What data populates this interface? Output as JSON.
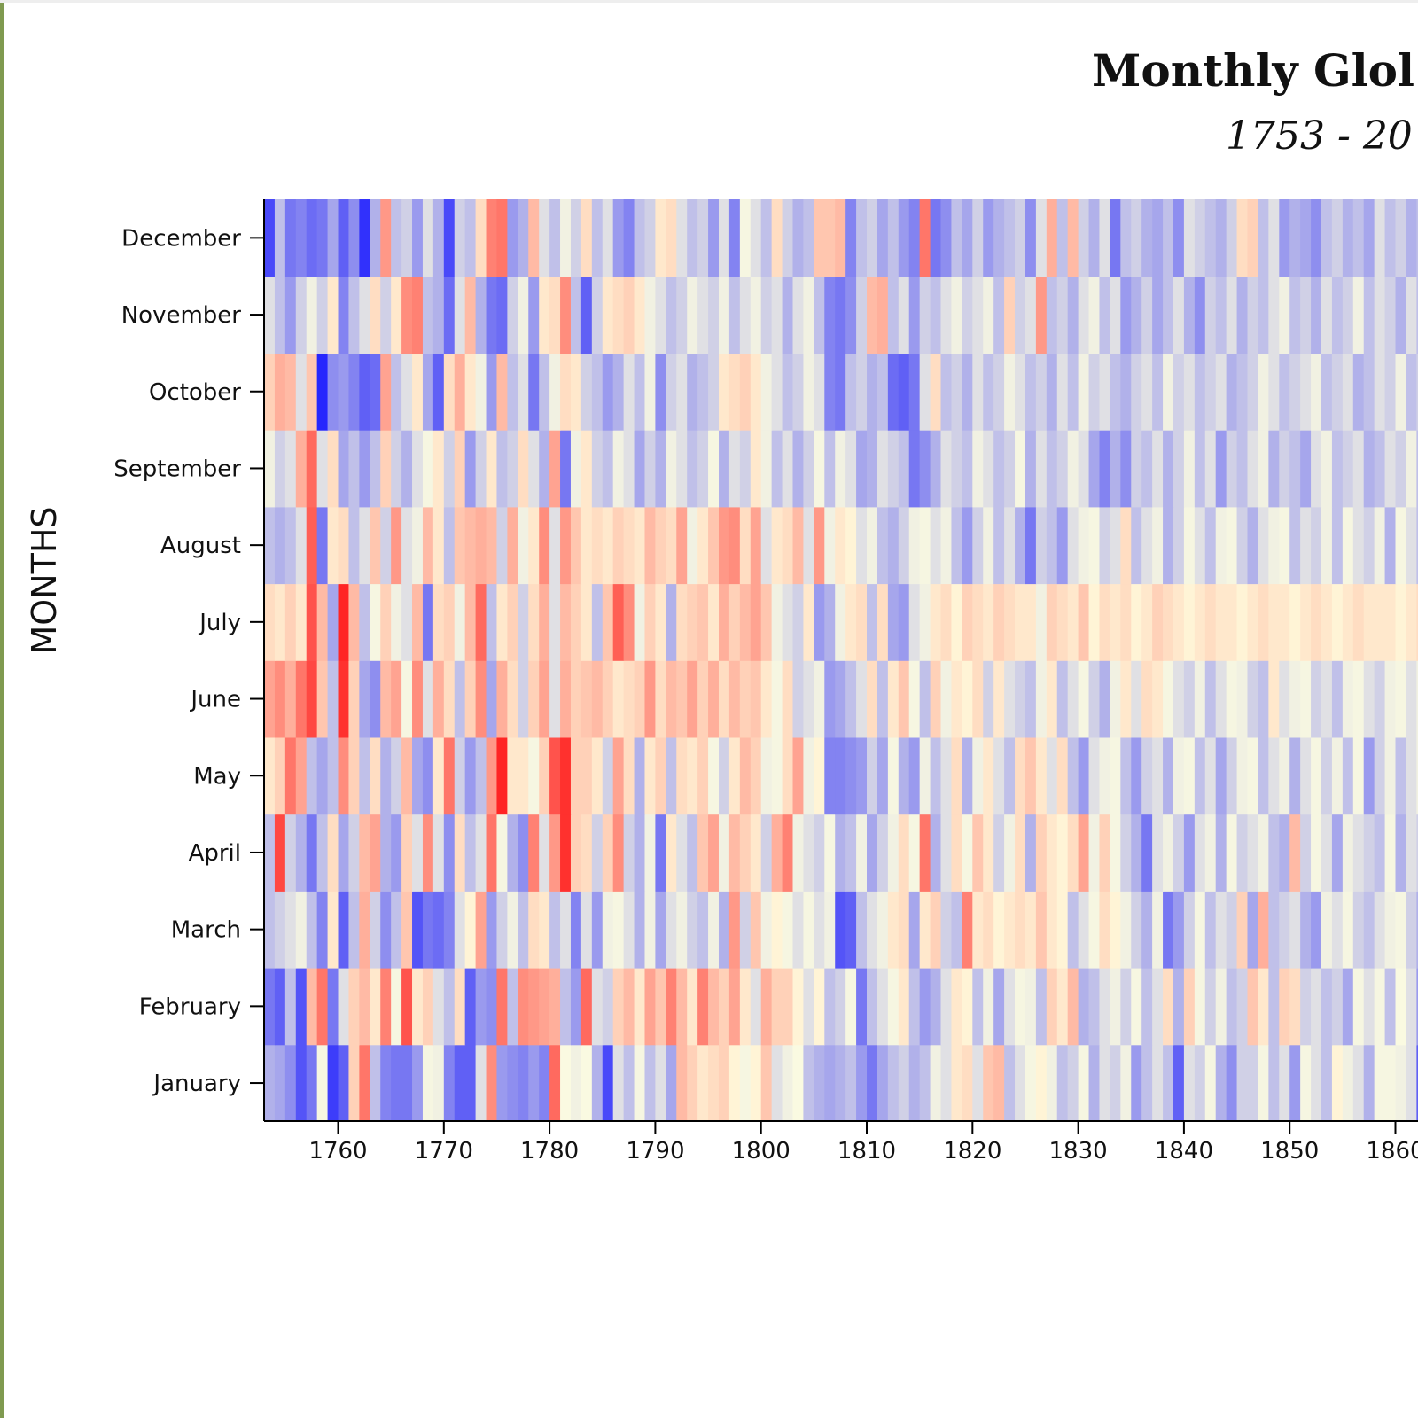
{
  "chart_data": {
    "type": "heatmap",
    "title": "Monthly Glol",
    "subtitle": "1753 - 20",
    "ylabel": "MONTHS",
    "xlabel": "",
    "x_range": [
      1753,
      1862
    ],
    "y_categories": [
      "January",
      "February",
      "March",
      "April",
      "May",
      "June",
      "July",
      "August",
      "September",
      "October",
      "November",
      "December"
    ],
    "x_ticks": [
      1760,
      1770,
      1780,
      1790,
      1800,
      1810,
      1820,
      1830,
      1840,
      1850,
      1860
    ],
    "color_scale": {
      "cold": "#1a1aff",
      "neutral": "#ffffe0",
      "warm": "#ff1a1a"
    },
    "value_domain": [
      -1,
      1
    ],
    "cell_values": [
      [
        -0.35,
        -0.4,
        -0.5,
        -0.75,
        -0.6,
        -0.1,
        -0.85,
        -0.7,
        0.2,
        0.6,
        -0.3,
        -0.55,
        -0.6,
        -0.6,
        -0.45,
        -0.1,
        -0.15,
        -0.55,
        -0.7,
        -0.7,
        -0.2,
        0.5,
        -0.45,
        -0.5,
        -0.55,
        -0.45,
        -0.55,
        0.65,
        -0.05,
        -0.15,
        -0.05,
        -0.35,
        -0.8,
        -0.2,
        -0.3,
        -0.1,
        -0.3,
        -0.2,
        -0.4,
        0.3,
        0.2,
        0.1,
        0.15,
        0.2,
        0.05,
        -0.1,
        0.05,
        0.25,
        -0.2,
        -0.15,
        -0.05,
        -0.3,
        -0.35,
        -0.4,
        -0.35,
        -0.3,
        -0.45,
        -0.6,
        -0.4,
        -0.3,
        -0.25,
        -0.35,
        -0.3,
        -0.15,
        -0.2,
        0.1,
        0.15,
        -0.2,
        0.25,
        0.3,
        -0.3,
        -0.2,
        -0.1,
        0.05,
        -0.15,
        -0.3,
        -0.25,
        -0.1,
        -0.35,
        -0.2,
        -0.25,
        -0.15,
        -0.45,
        -0.3,
        -0.2,
        -0.3,
        -0.7,
        -0.2,
        -0.25,
        -0.1,
        -0.35,
        -0.5,
        -0.25,
        -0.25,
        -0.1,
        -0.3,
        -0.2,
        -0.45,
        -0.1,
        -0.2,
        -0.3,
        0.05,
        -0.15,
        -0.2,
        -0.35,
        -0.1,
        -0.1,
        -0.15,
        -0.2,
        -0.7
      ],
      [
        -0.6,
        -0.7,
        -0.3,
        -0.75,
        0.3,
        0.6,
        -0.6,
        -0.2,
        0.2,
        0.3,
        0.1,
        0.55,
        -0.1,
        0.75,
        0.1,
        0.2,
        -0.2,
        -0.3,
        0.15,
        -0.7,
        -0.45,
        -0.5,
        0.6,
        -0.3,
        0.5,
        0.45,
        0.4,
        0.35,
        -0.3,
        -0.45,
        0.65,
        -0.2,
        -0.25,
        0.2,
        0.3,
        0.1,
        0.4,
        0.25,
        0.55,
        0.3,
        0.1,
        0.55,
        0.3,
        0.2,
        0.4,
        0.1,
        -0.2,
        0.35,
        0.2,
        0.2,
        0.05,
        -0.2,
        0.05,
        -0.3,
        -0.25,
        -0.1,
        -0.6,
        -0.3,
        -0.2,
        -0.1,
        0.1,
        -0.3,
        -0.45,
        -0.35,
        -0.2,
        0.1,
        0.05,
        -0.3,
        -0.15,
        -0.4,
        -0.2,
        -0.1,
        -0.15,
        -0.3,
        0.2,
        0.1,
        0.3,
        -0.35,
        -0.3,
        -0.2,
        -0.15,
        -0.25,
        -0.1,
        -0.3,
        -0.2,
        0.15,
        -0.35,
        0.2,
        -0.1,
        -0.25,
        -0.15,
        -0.3,
        -0.25,
        0.25,
        0.1,
        -0.3,
        0.2,
        0.15,
        -0.25,
        -0.2,
        -0.3,
        -0.25,
        -0.4,
        -0.1,
        -0.2,
        -0.1,
        -0.3,
        -0.05,
        -0.2,
        -0.45
      ],
      [
        -0.3,
        -0.25,
        -0.2,
        -0.15,
        -0.3,
        -0.55,
        0.1,
        -0.7,
        -0.3,
        0.35,
        -0.25,
        -0.5,
        -0.3,
        0.25,
        -0.75,
        -0.6,
        -0.65,
        -0.55,
        -0.2,
        0.05,
        0.4,
        -0.45,
        -0.25,
        -0.15,
        -0.3,
        0.15,
        0.1,
        -0.3,
        -0.2,
        -0.55,
        -0.2,
        -0.45,
        -0.15,
        -0.1,
        -0.2,
        -0.35,
        -0.15,
        -0.4,
        -0.2,
        -0.15,
        -0.25,
        -0.3,
        -0.15,
        -0.35,
        0.45,
        -0.25,
        0.25,
        -0.15,
        0.05,
        -0.1,
        -0.2,
        -0.1,
        -0.2,
        -0.15,
        -0.75,
        -0.7,
        -0.3,
        -0.2,
        -0.15,
        0.1,
        0.15,
        -0.4,
        0.1,
        0.2,
        -0.25,
        -0.3,
        0.55,
        0.1,
        0.15,
        0.05,
        0.1,
        0.15,
        0.1,
        0.25,
        0.1,
        0.05,
        -0.3,
        -0.2,
        -0.1,
        0.15,
        0.05,
        -0.15,
        -0.25,
        -0.35,
        -0.15,
        -0.6,
        -0.45,
        -0.25,
        -0.1,
        -0.3,
        -0.2,
        -0.25,
        0.2,
        -0.4,
        0.35,
        -0.3,
        -0.25,
        -0.2,
        -0.35,
        -0.45,
        -0.15,
        -0.2,
        -0.1,
        -0.25,
        -0.3,
        -0.2,
        -0.15,
        -0.1,
        -0.25,
        -0.35
      ],
      [
        -0.3,
        0.8,
        -0.25,
        -0.35,
        -0.6,
        -0.3,
        0.15,
        -0.4,
        -0.25,
        0.3,
        0.4,
        -0.35,
        -0.45,
        0.2,
        -0.2,
        0.5,
        -0.2,
        -0.5,
        0.15,
        -0.3,
        -0.2,
        0.6,
        -0.1,
        -0.35,
        -0.5,
        0.55,
        -0.2,
        0.45,
        0.9,
        0.2,
        0.15,
        -0.25,
        0.2,
        0.5,
        -0.25,
        -0.35,
        -0.15,
        -0.6,
        0.1,
        -0.2,
        -0.3,
        0.25,
        0.4,
        -0.15,
        0.3,
        0.2,
        0.1,
        -0.25,
        0.35,
        0.55,
        -0.15,
        -0.2,
        -0.25,
        -0.1,
        -0.35,
        -0.3,
        -0.15,
        -0.4,
        -0.25,
        -0.15,
        0.15,
        -0.1,
        0.6,
        -0.35,
        -0.2,
        0.15,
        -0.1,
        0.25,
        0.1,
        -0.25,
        -0.15,
        0.15,
        -0.35,
        0.2,
        0.1,
        0.05,
        0.15,
        0.4,
        -0.15,
        0.2,
        -0.1,
        -0.25,
        -0.35,
        -0.6,
        -0.2,
        -0.15,
        -0.25,
        -0.45,
        -0.2,
        -0.15,
        -0.35,
        -0.1,
        -0.25,
        -0.2,
        -0.15,
        -0.3,
        -0.35,
        0.3,
        -0.25,
        -0.1,
        -0.2,
        -0.4,
        -0.15,
        -0.2,
        -0.25,
        -0.3,
        -0.1,
        -0.35,
        -0.2,
        -0.25
      ],
      [
        0.1,
        0.2,
        0.6,
        0.4,
        -0.3,
        -0.4,
        -0.3,
        0.5,
        0.2,
        -0.3,
        0.15,
        -0.35,
        -0.25,
        0.3,
        -0.4,
        -0.5,
        0.1,
        0.6,
        -0.25,
        -0.45,
        -0.3,
        0.45,
        0.95,
        0.1,
        0.1,
        -0.1,
        0.2,
        0.75,
        0.9,
        0.2,
        0.2,
        0.1,
        -0.25,
        0.4,
        0.15,
        -0.35,
        0.1,
        0.2,
        -0.3,
        0.15,
        0.1,
        0.2,
        -0.1,
        -0.25,
        0.1,
        0.3,
        0.2,
        -0.15,
        -0.1,
        0.15,
        0.4,
        -0.15,
        0.05,
        -0.55,
        -0.55,
        -0.5,
        -0.45,
        -0.25,
        -0.4,
        -0.1,
        -0.35,
        -0.45,
        -0.15,
        -0.3,
        -0.2,
        0.15,
        -0.35,
        -0.15,
        0.1,
        -0.2,
        -0.3,
        0.15,
        0.25,
        0.1,
        -0.2,
        0.15,
        -0.3,
        -0.45,
        -0.2,
        -0.15,
        -0.1,
        -0.3,
        -0.45,
        -0.25,
        -0.2,
        -0.35,
        -0.15,
        -0.1,
        -0.3,
        -0.2,
        -0.4,
        -0.25,
        -0.15,
        -0.1,
        -0.3,
        -0.2,
        -0.15,
        -0.35,
        -0.2,
        -0.1,
        -0.25,
        -0.15,
        -0.3,
        -0.1,
        -0.45,
        -0.25,
        -0.15,
        -0.3,
        -0.2,
        -0.15
      ],
      [
        0.4,
        0.5,
        0.35,
        0.6,
        0.8,
        0.25,
        -0.3,
        0.9,
        0.2,
        -0.4,
        -0.5,
        0.3,
        0.4,
        -0.1,
        0.5,
        -0.2,
        0.35,
        0.15,
        -0.3,
        0.2,
        0.5,
        -0.4,
        0.35,
        0.15,
        -0.25,
        0.2,
        0.4,
        -0.2,
        0.35,
        0.2,
        0.25,
        0.3,
        0.2,
        0.1,
        0.15,
        0.2,
        0.45,
        0.15,
        0.3,
        0.25,
        0.4,
        0.2,
        0.35,
        0.15,
        0.3,
        0.2,
        0.25,
        0.1,
        -0.1,
        0.15,
        -0.25,
        -0.2,
        -0.15,
        -0.45,
        -0.4,
        -0.3,
        -0.2,
        0.15,
        -0.3,
        0.1,
        0.25,
        -0.1,
        -0.3,
        0.2,
        -0.15,
        0.1,
        0.05,
        0.15,
        -0.25,
        0.1,
        -0.2,
        -0.25,
        -0.3,
        -0.15,
        0.1,
        -0.3,
        -0.2,
        -0.1,
        -0.25,
        -0.35,
        -0.15,
        0.1,
        -0.2,
        0.15,
        0.1,
        -0.1,
        -0.2,
        -0.25,
        -0.15,
        -0.3,
        -0.2,
        -0.1,
        -0.15,
        -0.25,
        -0.3,
        0.1,
        -0.2,
        -0.15,
        -0.1,
        -0.25,
        -0.2,
        -0.3,
        -0.15,
        -0.1,
        -0.2,
        -0.25,
        -0.15,
        -0.1,
        -0.2,
        -0.15
      ],
      [
        0.15,
        0.1,
        0.2,
        0.1,
        0.75,
        0.3,
        -0.4,
        0.95,
        0.3,
        -0.3,
        -0.1,
        0.2,
        -0.15,
        -0.2,
        0.3,
        -0.6,
        0.15,
        0.2,
        -0.15,
        0.3,
        0.65,
        -0.3,
        0.1,
        0.2,
        -0.25,
        0.15,
        0.35,
        -0.2,
        0.3,
        0.2,
        0.1,
        -0.3,
        0.25,
        0.7,
        0.5,
        -0.15,
        0.2,
        0.1,
        -0.35,
        0.15,
        0.2,
        0.25,
        0.1,
        0.35,
        0.2,
        0.3,
        0.4,
        0.25,
        -0.15,
        -0.2,
        -0.25,
        0.1,
        -0.45,
        -0.35,
        -0.15,
        0.1,
        0.15,
        -0.3,
        0.15,
        -0.4,
        -0.45,
        -0.2,
        -0.15,
        0.1,
        0.15,
        0.05,
        0.2,
        0.15,
        0.1,
        0.2,
        0.15,
        0.1,
        0.1,
        -0.15,
        0.2,
        0.15,
        0.1,
        0.25,
        0.05,
        0.15,
        0.1,
        0.15,
        0.05,
        0.1,
        0.2,
        0.15,
        0.1,
        0.05,
        0.1,
        0.15,
        0.1,
        0.1,
        0.05,
        0.1,
        0.15,
        0.1,
        0.1,
        0.05,
        0.1,
        0.15,
        0.1,
        0.05,
        0.1,
        0.15,
        0.1,
        0.1,
        0.1,
        0.05,
        0.1,
        0.15
      ],
      [
        -0.3,
        -0.35,
        -0.3,
        -0.2,
        0.7,
        -0.6,
        0.1,
        0.15,
        -0.3,
        -0.2,
        0.25,
        -0.25,
        0.45,
        -0.2,
        -0.15,
        0.3,
        0.1,
        -0.3,
        0.25,
        0.3,
        0.35,
        0.3,
        -0.25,
        0.35,
        -0.15,
        0.1,
        0.5,
        -0.2,
        0.45,
        0.25,
        0.1,
        0.15,
        0.1,
        0.2,
        0.15,
        0.1,
        0.3,
        0.2,
        0.15,
        0.4,
        -0.15,
        0.1,
        0.25,
        0.45,
        0.5,
        0.15,
        0.4,
        -0.2,
        0.1,
        0.15,
        0.3,
        -0.2,
        0.45,
        -0.15,
        0.1,
        0.05,
        -0.2,
        -0.15,
        -0.3,
        -0.35,
        -0.25,
        -0.15,
        -0.1,
        -0.2,
        -0.15,
        -0.3,
        -0.45,
        -0.25,
        -0.15,
        -0.3,
        -0.2,
        -0.35,
        -0.6,
        -0.25,
        -0.3,
        -0.45,
        -0.2,
        -0.15,
        -0.1,
        -0.25,
        -0.2,
        0.15,
        -0.3,
        -0.2,
        -0.15,
        -0.35,
        -0.25,
        -0.1,
        -0.2,
        -0.3,
        -0.15,
        -0.1,
        -0.25,
        -0.35,
        -0.2,
        -0.15,
        -0.1,
        -0.3,
        -0.2,
        -0.25,
        -0.15,
        -0.3,
        -0.1,
        -0.2,
        -0.25,
        -0.15,
        -0.35,
        -0.1,
        -0.2,
        -0.3
      ],
      [
        -0.15,
        -0.25,
        -0.2,
        0.35,
        0.65,
        -0.2,
        0.15,
        -0.4,
        -0.3,
        -0.45,
        -0.3,
        0.2,
        -0.25,
        -0.35,
        -0.2,
        -0.1,
        0.1,
        -0.25,
        0.2,
        -0.45,
        -0.25,
        0.1,
        -0.3,
        -0.25,
        0.15,
        -0.2,
        -0.35,
        0.4,
        -0.6,
        -0.15,
        0.1,
        -0.25,
        -0.3,
        -0.15,
        -0.2,
        -0.4,
        -0.25,
        -0.35,
        -0.15,
        -0.2,
        -0.3,
        -0.25,
        -0.1,
        -0.35,
        -0.2,
        -0.25,
        0.1,
        -0.15,
        -0.3,
        -0.2,
        -0.35,
        -0.25,
        -0.1,
        -0.3,
        -0.15,
        -0.2,
        -0.4,
        -0.35,
        -0.2,
        -0.25,
        -0.3,
        -0.6,
        -0.5,
        -0.35,
        -0.2,
        -0.25,
        -0.3,
        -0.15,
        -0.2,
        -0.3,
        -0.25,
        -0.1,
        -0.35,
        -0.2,
        -0.3,
        -0.25,
        -0.15,
        -0.2,
        -0.4,
        -0.55,
        -0.35,
        -0.5,
        -0.25,
        -0.3,
        -0.2,
        -0.35,
        -0.25,
        -0.15,
        -0.3,
        -0.2,
        -0.45,
        -0.25,
        -0.3,
        -0.2,
        -0.15,
        -0.35,
        -0.25,
        -0.3,
        -0.4,
        -0.2,
        -0.15,
        -0.3,
        -0.25,
        -0.2,
        -0.35,
        -0.3,
        -0.2,
        -0.25,
        -0.15,
        -0.3
      ],
      [
        0.2,
        0.35,
        0.3,
        -0.2,
        0.25,
        -0.95,
        -0.5,
        -0.45,
        -0.55,
        -0.7,
        -0.65,
        0.4,
        -0.3,
        -0.2,
        0.1,
        -0.4,
        -0.7,
        0.15,
        0.35,
        0.1,
        -0.15,
        -0.45,
        0.3,
        -0.3,
        -0.2,
        -0.6,
        -0.3,
        -0.15,
        0.15,
        0.1,
        -0.25,
        -0.3,
        -0.45,
        -0.35,
        -0.2,
        -0.3,
        -0.15,
        -0.5,
        -0.25,
        -0.2,
        -0.35,
        -0.3,
        -0.25,
        0.1,
        0.15,
        0.2,
        0.1,
        -0.15,
        -0.2,
        -0.3,
        -0.25,
        -0.15,
        -0.2,
        -0.55,
        -0.6,
        -0.3,
        -0.25,
        -0.35,
        -0.3,
        -0.65,
        -0.7,
        -0.6,
        -0.2,
        0.15,
        -0.3,
        -0.25,
        -0.35,
        -0.2,
        -0.3,
        -0.25,
        -0.15,
        -0.2,
        -0.3,
        -0.25,
        -0.35,
        -0.2,
        -0.3,
        -0.15,
        -0.25,
        -0.2,
        -0.3,
        -0.35,
        -0.25,
        -0.2,
        -0.3,
        -0.15,
        -0.25,
        -0.2,
        -0.3,
        -0.25,
        -0.2,
        -0.35,
        -0.3,
        -0.25,
        -0.15,
        -0.2,
        -0.3,
        -0.25,
        -0.2,
        -0.15,
        -0.3,
        -0.25,
        -0.2,
        -0.35,
        -0.3,
        -0.2,
        -0.25,
        -0.15,
        -0.3,
        -0.25
      ],
      [
        -0.2,
        -0.3,
        -0.45,
        -0.25,
        -0.15,
        -0.25,
        0.1,
        -0.55,
        -0.3,
        -0.2,
        0.15,
        -0.25,
        0.1,
        0.5,
        0.55,
        -0.3,
        -0.35,
        -0.65,
        -0.2,
        0.3,
        -0.35,
        -0.6,
        -0.65,
        -0.25,
        -0.15,
        -0.45,
        0.1,
        0.15,
        0.5,
        -0.3,
        -0.7,
        -0.25,
        0.1,
        0.15,
        0.2,
        0.1,
        -0.15,
        -0.2,
        -0.3,
        -0.25,
        -0.15,
        -0.2,
        -0.25,
        -0.15,
        -0.3,
        -0.2,
        -0.15,
        -0.25,
        -0.2,
        -0.35,
        -0.2,
        -0.15,
        -0.3,
        -0.55,
        -0.6,
        -0.5,
        -0.25,
        0.3,
        0.35,
        -0.3,
        -0.2,
        -0.45,
        -0.25,
        -0.3,
        -0.2,
        -0.15,
        -0.25,
        -0.2,
        -0.15,
        -0.3,
        0.2,
        -0.25,
        -0.2,
        0.45,
        -0.3,
        -0.25,
        -0.35,
        -0.2,
        -0.15,
        -0.3,
        -0.2,
        -0.45,
        -0.35,
        -0.25,
        -0.4,
        -0.3,
        -0.2,
        -0.35,
        -0.5,
        -0.25,
        -0.3,
        -0.2,
        -0.35,
        -0.25,
        -0.3,
        -0.2,
        -0.15,
        -0.3,
        -0.25,
        -0.35,
        -0.2,
        -0.3,
        -0.25,
        -0.15,
        -0.3,
        -0.2,
        -0.25,
        -0.35,
        -0.2,
        -0.3
      ],
      [
        -0.8,
        -0.3,
        -0.6,
        -0.55,
        -0.65,
        -0.6,
        -0.4,
        -0.7,
        -0.5,
        -0.9,
        -0.35,
        0.45,
        -0.3,
        -0.25,
        -0.45,
        -0.2,
        -0.35,
        -0.8,
        -0.25,
        -0.3,
        0.15,
        0.55,
        0.6,
        -0.45,
        -0.35,
        0.3,
        -0.2,
        -0.3,
        -0.15,
        -0.25,
        0.15,
        -0.3,
        -0.2,
        -0.45,
        -0.55,
        -0.3,
        -0.25,
        0.1,
        0.15,
        -0.2,
        -0.3,
        -0.25,
        -0.45,
        -0.2,
        -0.55,
        -0.1,
        -0.2,
        -0.3,
        0.15,
        -0.25,
        -0.35,
        -0.3,
        0.25,
        0.25,
        0.3,
        -0.55,
        -0.3,
        -0.25,
        -0.4,
        -0.3,
        -0.45,
        -0.55,
        0.6,
        -0.6,
        -0.5,
        -0.3,
        -0.4,
        -0.25,
        -0.45,
        -0.35,
        -0.3,
        -0.25,
        -0.5,
        -0.2,
        0.35,
        -0.3,
        0.3,
        -0.25,
        -0.35,
        -0.2,
        -0.6,
        -0.3,
        -0.25,
        -0.35,
        -0.4,
        -0.3,
        -0.5,
        -0.2,
        -0.25,
        -0.3,
        -0.35,
        -0.25,
        0.15,
        0.2,
        -0.3,
        -0.2,
        -0.45,
        -0.35,
        -0.4,
        -0.5,
        -0.3,
        -0.25,
        -0.35,
        -0.3,
        -0.4,
        -0.2,
        -0.3,
        -0.25,
        -0.35,
        -0.3
      ]
    ]
  }
}
